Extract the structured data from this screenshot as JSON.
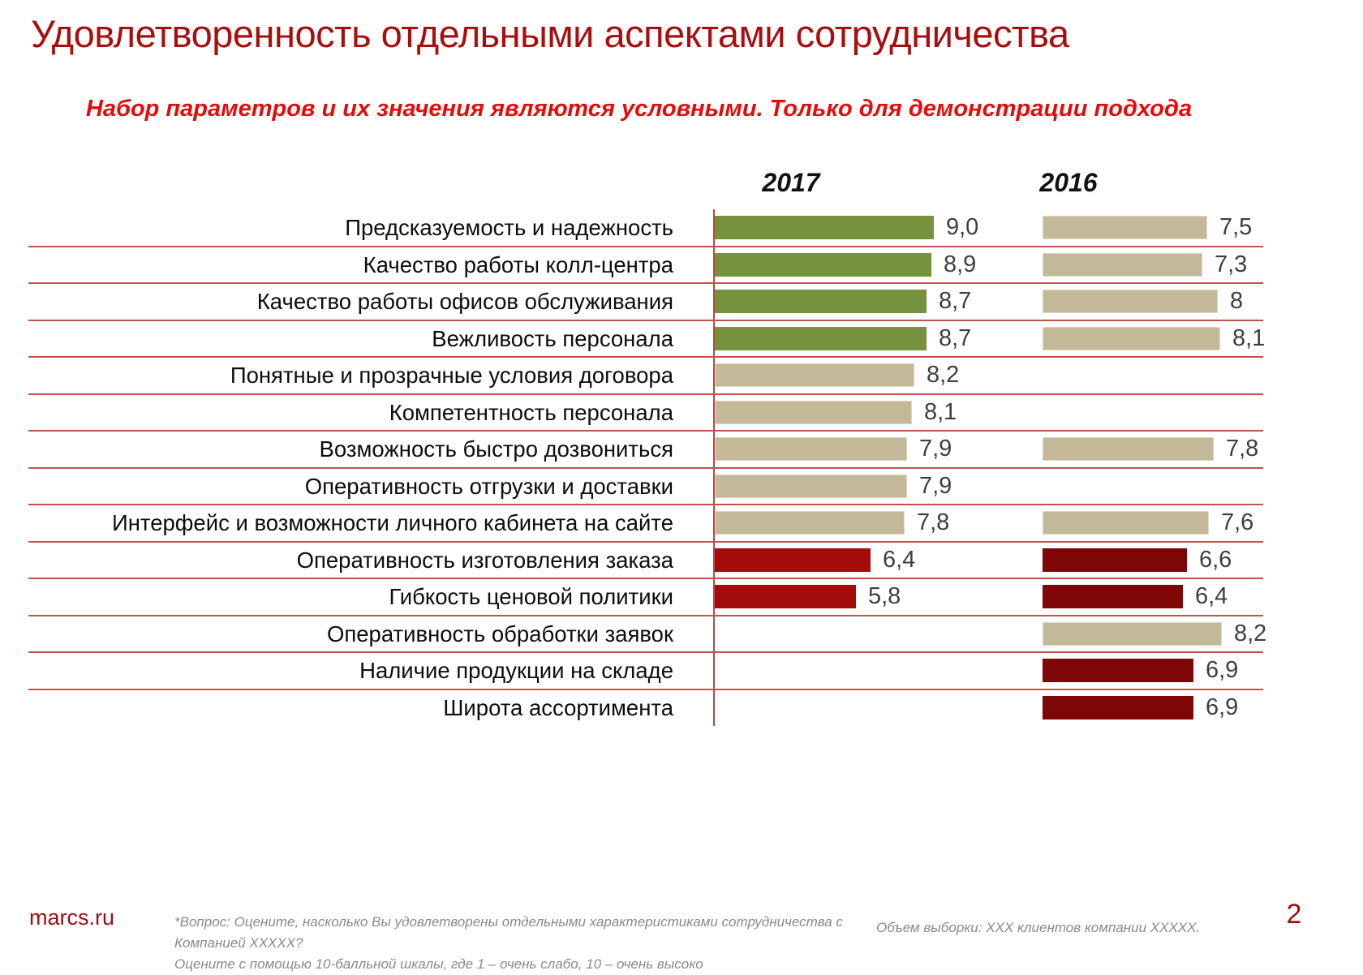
{
  "slide": {
    "title": "Удовлетворенность отдельными аспектами сотрудничества",
    "subtitle": "Набор параметров и их значения являются условными. Только для демонстрации подхода",
    "page_number": "2",
    "brand": "marcs.ru",
    "footnote_lines": [
      "*Вопрос: Оцените, насколько Вы удовлетворены отдельными характеристиками сотрудничества с",
      "Компанией XXXXX?",
      "Оцените с помощью 10-балльной шкалы, где 1 – очень слабо, 10 – очень высоко"
    ],
    "sample_note": "Объем выборки: XXX клиентов компании XXXXX."
  },
  "colors": {
    "title_red": "#a90e0e",
    "subtitle_red": "#e60b0b",
    "separator_red": "#c2524e",
    "axis_red": "#b94744",
    "footer_red": "#9d0d0d",
    "bar_green": "#77923C",
    "bar_tan": "#C3B897",
    "bar_red_2017": "#a40b0b",
    "bar_darkred_2016": "#7f0606",
    "value_gray": "#3f3f3f"
  },
  "chart_data": {
    "type": "bar",
    "orientation": "horizontal",
    "value_scale": "10-балльная шкала (1 – очень слабо, 10 – очень высоко)",
    "column_headers": [
      "2017",
      "2016"
    ],
    "legend_position": "none",
    "grid": "red horizontal separators between categories",
    "xlim": [
      0,
      10
    ],
    "rows": [
      {
        "label": "Предсказуемость и надежность",
        "y2017": {
          "value": 9.0,
          "display": "9,0",
          "color": "green"
        },
        "y2016": {
          "value": 7.5,
          "display": "7,5",
          "color": "tan"
        }
      },
      {
        "label": "Качество работы колл-центра",
        "y2017": {
          "value": 8.9,
          "display": "8,9",
          "color": "green"
        },
        "y2016": {
          "value": 7.3,
          "display": "7,3",
          "color": "tan"
        }
      },
      {
        "label": "Качество работы офисов обслуживания",
        "y2017": {
          "value": 8.7,
          "display": "8,7",
          "color": "green"
        },
        "y2016": {
          "value": 8.0,
          "display": "8",
          "color": "tan"
        }
      },
      {
        "label": "Вежливость персонала",
        "y2017": {
          "value": 8.7,
          "display": "8,7",
          "color": "green"
        },
        "y2016": {
          "value": 8.1,
          "display": "8,1",
          "color": "tan"
        }
      },
      {
        "label": "Понятные и прозрачные условия договора",
        "y2017": {
          "value": 8.2,
          "display": "8,2",
          "color": "tan"
        },
        "y2016": null
      },
      {
        "label": "Компетентность персонала",
        "y2017": {
          "value": 8.1,
          "display": "8,1",
          "color": "tan"
        },
        "y2016": null
      },
      {
        "label": "Возможность быстро дозвониться",
        "y2017": {
          "value": 7.9,
          "display": "7,9",
          "color": "tan"
        },
        "y2016": {
          "value": 7.8,
          "display": "7,8",
          "color": "tan"
        }
      },
      {
        "label": "Оперативность отгрузки и доставки",
        "y2017": {
          "value": 7.9,
          "display": "7,9",
          "color": "tan"
        },
        "y2016": null
      },
      {
        "label": "Интерфейс и возможности личного кабинета на сайте",
        "y2017": {
          "value": 7.8,
          "display": "7,8",
          "color": "tan"
        },
        "y2016": {
          "value": 7.6,
          "display": "7,6",
          "color": "tan"
        }
      },
      {
        "label": "Оперативность изготовления заказа",
        "y2017": {
          "value": 6.4,
          "display": "6,4",
          "color": "red"
        },
        "y2016": {
          "value": 6.6,
          "display": "6,6",
          "color": "darkred"
        }
      },
      {
        "label": "Гибкость ценовой политики",
        "y2017": {
          "value": 5.8,
          "display": "5,8",
          "color": "red"
        },
        "y2016": {
          "value": 6.4,
          "display": "6,4",
          "color": "darkred"
        }
      },
      {
        "label": "Оперативность обработки заявок",
        "y2017": null,
        "y2016": {
          "value": 8.2,
          "display": "8,2",
          "color": "tan"
        }
      },
      {
        "label": "Наличие продукции на складе",
        "y2017": null,
        "y2016": {
          "value": 6.9,
          "display": "6,9",
          "color": "darkred"
        }
      },
      {
        "label": "Широта ассортимента",
        "y2017": null,
        "y2016": {
          "value": 6.9,
          "display": "6,9",
          "color": "darkred"
        }
      }
    ]
  }
}
